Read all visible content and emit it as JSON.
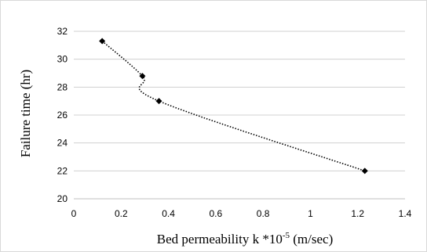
{
  "chart_data": {
    "type": "line",
    "title": "",
    "xlabel": "Bed permeability k *10",
    "xlabel_superscript": "-5",
    "xlabel_suffix": " (m/sec)",
    "ylabel": "Failure time (hr)",
    "xlim": [
      0,
      1.4
    ],
    "ylim": [
      20,
      32
    ],
    "x_ticks": [
      0,
      0.2,
      0.4,
      0.6,
      0.8,
      1,
      1.2,
      1.4
    ],
    "x_tick_labels": [
      "0",
      "0.2",
      "0.4",
      "0.6",
      "0.8",
      "1",
      "1.2",
      "1.4"
    ],
    "y_ticks": [
      20,
      22,
      24,
      26,
      28,
      30,
      32
    ],
    "y_tick_labels": [
      "20",
      "22",
      "24",
      "26",
      "28",
      "30",
      "32"
    ],
    "grid": "horizontal",
    "legend": "none",
    "line_style": "dotted, smoothed",
    "marker": "diamond",
    "colors": {
      "series": "#000000",
      "grid": "#d0d0d0",
      "frame": "#d9d9d9"
    },
    "series": [
      {
        "x": [
          0.12,
          0.29,
          0.36,
          1.23
        ],
        "y": [
          31.3,
          28.8,
          27.0,
          22.0
        ]
      }
    ]
  }
}
